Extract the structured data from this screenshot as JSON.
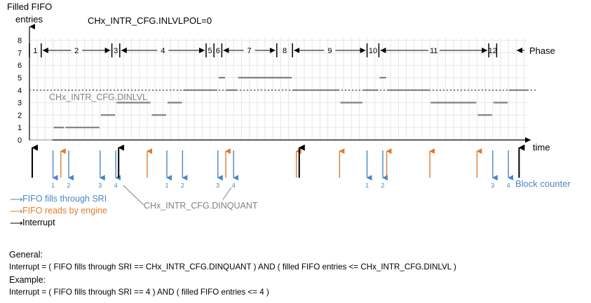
{
  "axis": {
    "y_label_line1": "Filled FIFO",
    "y_label_line2": "entries",
    "x_label": "time",
    "y_ticks": [
      "0",
      "1",
      "2",
      "3",
      "4",
      "5",
      "6",
      "7",
      "8"
    ]
  },
  "title": "CHx_INTR_CFG.INLVLPOL=0",
  "phase_label": "Phase",
  "phases": [
    "1",
    "2",
    "3",
    "4",
    "5",
    "6",
    "7",
    "8",
    "9",
    "10",
    "11",
    "12"
  ],
  "dinlvl_label": "CHx_INTR_CFG.DINLVL",
  "dinquant_label": "CHx_INTR_CFG.DINQUANT",
  "block_counter_label": "Block counter",
  "block_counts": [
    "1",
    "2",
    "3",
    "4",
    "1",
    "2",
    "3",
    "4",
    "1",
    "2",
    "3",
    "4"
  ],
  "legend": {
    "sri": "FIFO fills through SRI",
    "engine": "FIFO reads by engine",
    "interrupt": "Interrupt"
  },
  "colors": {
    "sri": "#4a86c8",
    "engine": "#e07b2e",
    "interrupt": "#000000",
    "level": "#808080"
  },
  "text": {
    "general_heading": "General:",
    "general_formula": "Interrupt = ( FIFO fills through SRI == CHx_INTR_CFG.DINQUANT ) AND ( filled FIFO entries <= CHx_INTR_CFG.DINLVL )",
    "example_heading": "Example:",
    "example_formula": "Interrupt = ( FIFO fills through SRI == 4 ) AND ( filled FIFO entries <= 4 )"
  },
  "chart_data": {
    "type": "line",
    "ylim": [
      0,
      8
    ],
    "dinlvl": 4,
    "levels": [
      {
        "x0": 0,
        "x1": 3,
        "y": 0
      },
      {
        "x0": 3,
        "x1": 4.5,
        "y": 1
      },
      {
        "x0": 4.5,
        "x1": 9,
        "y": 1
      },
      {
        "x0": 9,
        "x1": 11,
        "y": 2
      },
      {
        "x0": 11,
        "x1": 15.5,
        "y": 3
      },
      {
        "x0": 15.5,
        "x1": 17.5,
        "y": 2
      },
      {
        "x0": 17.5,
        "x1": 19.5,
        "y": 3
      },
      {
        "x0": 19.5,
        "x1": 24,
        "y": 4
      },
      {
        "x0": 24,
        "x1": 25,
        "y": 5
      },
      {
        "x0": 25,
        "x1": 26.5,
        "y": 4
      },
      {
        "x0": 26.5,
        "x1": 33.5,
        "y": 5
      },
      {
        "x0": 33.5,
        "x1": 39.5,
        "y": 4
      },
      {
        "x0": 39.5,
        "x1": 42.5,
        "y": 3
      },
      {
        "x0": 42.5,
        "x1": 44.5,
        "y": 4
      },
      {
        "x0": 44.5,
        "x1": 45.5,
        "y": 5
      },
      {
        "x0": 45.5,
        "x1": 51,
        "y": 4
      },
      {
        "x0": 51,
        "x1": 57,
        "y": 3
      },
      {
        "x0": 57,
        "x1": 59,
        "y": 2
      },
      {
        "x0": 59,
        "x1": 61,
        "y": 3
      },
      {
        "x0": 61,
        "x1": 63.5,
        "y": 4
      }
    ],
    "sri_events": [
      3,
      5,
      9,
      11,
      17.5,
      19.5,
      24,
      26,
      43,
      45,
      59,
      61
    ],
    "engine_events": [
      4,
      25,
      15,
      34,
      39.5,
      45.5,
      51,
      57
    ],
    "interrupt_events": [
      0,
      11,
      34,
      62
    ],
    "phase_bounds": [
      0,
      1.5,
      10.5,
      11.5,
      22.5,
      23.5,
      24.5,
      31.5,
      33.5,
      43,
      44.5,
      58.5,
      59.5
    ]
  }
}
